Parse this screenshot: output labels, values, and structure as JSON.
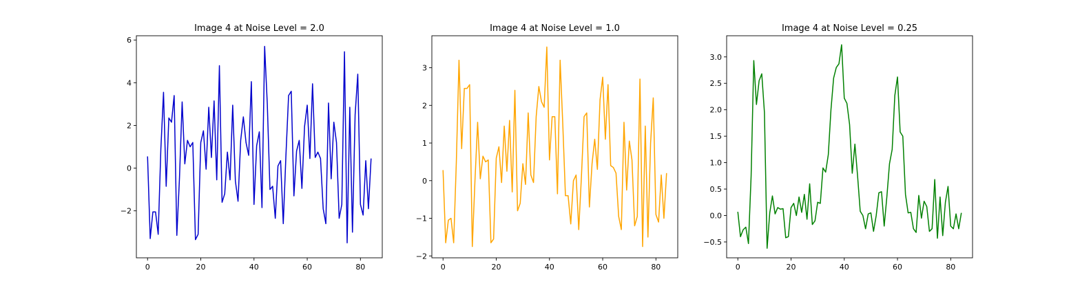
{
  "chart_data": [
    {
      "type": "line",
      "title": "Image 4 at Noise Level = 2.0",
      "xlabel": "",
      "ylabel": "",
      "xlim": [
        -4.2,
        88.2
      ],
      "ylim": [
        -4.2,
        6.2
      ],
      "xticks": [
        0,
        20,
        40,
        60,
        80
      ],
      "xtick_labels": [
        "0",
        "20",
        "40",
        "60",
        "80"
      ],
      "yticks": [
        -2,
        0,
        2,
        4,
        6
      ],
      "ytick_labels": [
        "−2",
        "0",
        "2",
        "4",
        "6"
      ],
      "grid": false,
      "series": [
        {
          "color": "#0000cc",
          "x": [
            0,
            1,
            2,
            3,
            4,
            5,
            6,
            7,
            8,
            9,
            10,
            11,
            12,
            13,
            14,
            15,
            16,
            17,
            18,
            19,
            20,
            21,
            22,
            23,
            24,
            25,
            26,
            27,
            28,
            29,
            30,
            31,
            32,
            33,
            34,
            35,
            36,
            37,
            38,
            39,
            40,
            41,
            42,
            43,
            44,
            45,
            46,
            47,
            48,
            49,
            50,
            51,
            52,
            53,
            54,
            55,
            56,
            57,
            58,
            59,
            60,
            61,
            62,
            63,
            64,
            65,
            66,
            67,
            68,
            69,
            70,
            71,
            72,
            73,
            74,
            75,
            76,
            77,
            78,
            79,
            80,
            81,
            82,
            83,
            84
          ],
          "y": [
            0.55,
            -3.3,
            -2.05,
            -2.05,
            -3.1,
            0.9,
            3.55,
            -0.85,
            2.35,
            2.15,
            3.4,
            -3.15,
            -0.45,
            3.1,
            0.2,
            1.3,
            1.0,
            1.2,
            -3.35,
            -3.1,
            1.2,
            1.75,
            -0.05,
            2.85,
            0.5,
            3.15,
            -0.55,
            4.8,
            -1.6,
            -1.2,
            0.75,
            -0.55,
            2.95,
            -0.6,
            -1.55,
            1.3,
            2.4,
            1.2,
            0.6,
            4.05,
            -1.7,
            1.05,
            1.7,
            -1.85,
            5.7,
            3.0,
            -1.0,
            -0.85,
            -2.35,
            0.1,
            0.35,
            -2.6,
            0.6,
            3.4,
            3.6,
            -1.3,
            0.8,
            1.3,
            -0.95,
            1.95,
            2.95,
            0.45,
            3.95,
            0.5,
            0.75,
            0.45,
            -1.9,
            -2.6,
            3.05,
            -0.5,
            2.15,
            1.2,
            -2.35,
            -1.7,
            5.45,
            -3.5,
            2.85,
            -3.0,
            2.5,
            4.4,
            -1.7,
            -2.2,
            0.35,
            -1.9,
            0.45
          ]
        }
      ]
    },
    {
      "type": "line",
      "title": "Image 4 at Noise Level = 1.0",
      "xlabel": "",
      "ylabel": "",
      "xlim": [
        -4.2,
        88.2
      ],
      "ylim": [
        -2.05,
        3.85
      ],
      "xticks": [
        0,
        20,
        40,
        60,
        80
      ],
      "xtick_labels": [
        "0",
        "20",
        "40",
        "60",
        "80"
      ],
      "yticks": [
        -2,
        -1,
        0,
        1,
        2,
        3
      ],
      "ytick_labels": [
        "−2",
        "−1",
        "0",
        "1",
        "2",
        "3"
      ],
      "grid": false,
      "series": [
        {
          "color": "#ffa500",
          "x": [
            0,
            1,
            2,
            3,
            4,
            5,
            6,
            7,
            8,
            9,
            10,
            11,
            12,
            13,
            14,
            15,
            16,
            17,
            18,
            19,
            20,
            21,
            22,
            23,
            24,
            25,
            26,
            27,
            28,
            29,
            30,
            31,
            32,
            33,
            34,
            35,
            36,
            37,
            38,
            39,
            40,
            41,
            42,
            43,
            44,
            45,
            46,
            47,
            48,
            49,
            50,
            51,
            52,
            53,
            54,
            55,
            56,
            57,
            58,
            59,
            60,
            61,
            62,
            63,
            64,
            65,
            66,
            67,
            68,
            69,
            70,
            71,
            72,
            73,
            74,
            75,
            76,
            77,
            78,
            79,
            80,
            81,
            82,
            83,
            84
          ],
          "y": [
            0.28,
            -1.65,
            -1.05,
            -1.0,
            -1.65,
            0.5,
            3.2,
            0.85,
            2.45,
            2.45,
            2.55,
            -1.75,
            0.0,
            1.55,
            0.05,
            0.65,
            0.5,
            0.55,
            -1.65,
            -1.55,
            0.6,
            0.9,
            -0.05,
            1.45,
            0.25,
            1.6,
            -0.3,
            2.4,
            -0.8,
            -0.6,
            0.45,
            -0.1,
            1.8,
            0.15,
            -0.05,
            1.7,
            2.5,
            2.1,
            1.95,
            3.55,
            0.55,
            1.7,
            1.7,
            -0.35,
            3.2,
            1.5,
            -0.4,
            -0.4,
            -1.15,
            0.0,
            0.15,
            -1.3,
            0.1,
            1.7,
            1.8,
            -0.7,
            0.45,
            1.1,
            0.3,
            2.15,
            2.75,
            1.1,
            2.55,
            0.4,
            0.35,
            0.2,
            -0.95,
            -1.3,
            1.55,
            -0.25,
            1.05,
            0.55,
            -1.2,
            -0.95,
            2.7,
            -1.75,
            1.45,
            -1.5,
            1.0,
            2.2,
            -0.9,
            -1.1,
            0.15,
            -1.0,
            0.2
          ]
        }
      ]
    },
    {
      "type": "line",
      "title": "Image 4 at Noise Level = 0.25",
      "xlabel": "",
      "ylabel": "",
      "xlim": [
        -4.2,
        88.2
      ],
      "ylim": [
        -0.8,
        3.4
      ],
      "xticks": [
        0,
        20,
        40,
        60,
        80
      ],
      "xtick_labels": [
        "0",
        "20",
        "40",
        "60",
        "80"
      ],
      "yticks": [
        -0.5,
        0.0,
        0.5,
        1.0,
        1.5,
        2.0,
        2.5,
        3.0
      ],
      "ytick_labels": [
        "−0.5",
        "0.0",
        "0.5",
        "1.0",
        "1.5",
        "2.0",
        "2.5",
        "3.0"
      ],
      "grid": false,
      "series": [
        {
          "color": "#008000",
          "x": [
            0,
            1,
            2,
            3,
            4,
            5,
            6,
            7,
            8,
            9,
            10,
            11,
            12,
            13,
            14,
            15,
            16,
            17,
            18,
            19,
            20,
            21,
            22,
            23,
            24,
            25,
            26,
            27,
            28,
            29,
            30,
            31,
            32,
            33,
            34,
            35,
            36,
            37,
            38,
            39,
            40,
            41,
            42,
            43,
            44,
            45,
            46,
            47,
            48,
            49,
            50,
            51,
            52,
            53,
            54,
            55,
            56,
            57,
            58,
            59,
            60,
            61,
            62,
            63,
            64,
            65,
            66,
            67,
            68,
            69,
            70,
            71,
            72,
            73,
            74,
            75,
            76,
            77,
            78,
            79,
            80,
            81,
            82,
            83,
            84
          ],
          "y": [
            0.07,
            -0.4,
            -0.27,
            -0.22,
            -0.53,
            0.75,
            2.93,
            2.1,
            2.55,
            2.68,
            1.95,
            -0.62,
            0.05,
            0.37,
            0.03,
            0.15,
            0.12,
            0.13,
            -0.42,
            -0.4,
            0.15,
            0.23,
            0.0,
            0.35,
            0.06,
            0.4,
            -0.07,
            0.6,
            -0.17,
            -0.1,
            0.25,
            0.23,
            0.9,
            0.82,
            1.15,
            2.0,
            2.6,
            2.8,
            2.87,
            3.23,
            2.22,
            2.12,
            1.72,
            0.8,
            1.35,
            0.75,
            0.08,
            0.0,
            -0.25,
            0.03,
            0.05,
            -0.3,
            0.0,
            0.43,
            0.45,
            -0.2,
            0.35,
            0.98,
            1.25,
            2.27,
            2.62,
            1.58,
            1.5,
            0.4,
            0.05,
            0.06,
            -0.25,
            -0.32,
            0.38,
            -0.05,
            0.27,
            0.17,
            -0.3,
            -0.25,
            0.68,
            -0.43,
            0.35,
            -0.38,
            0.25,
            0.55,
            -0.2,
            -0.25,
            0.03,
            -0.25,
            0.05
          ]
        }
      ]
    }
  ]
}
